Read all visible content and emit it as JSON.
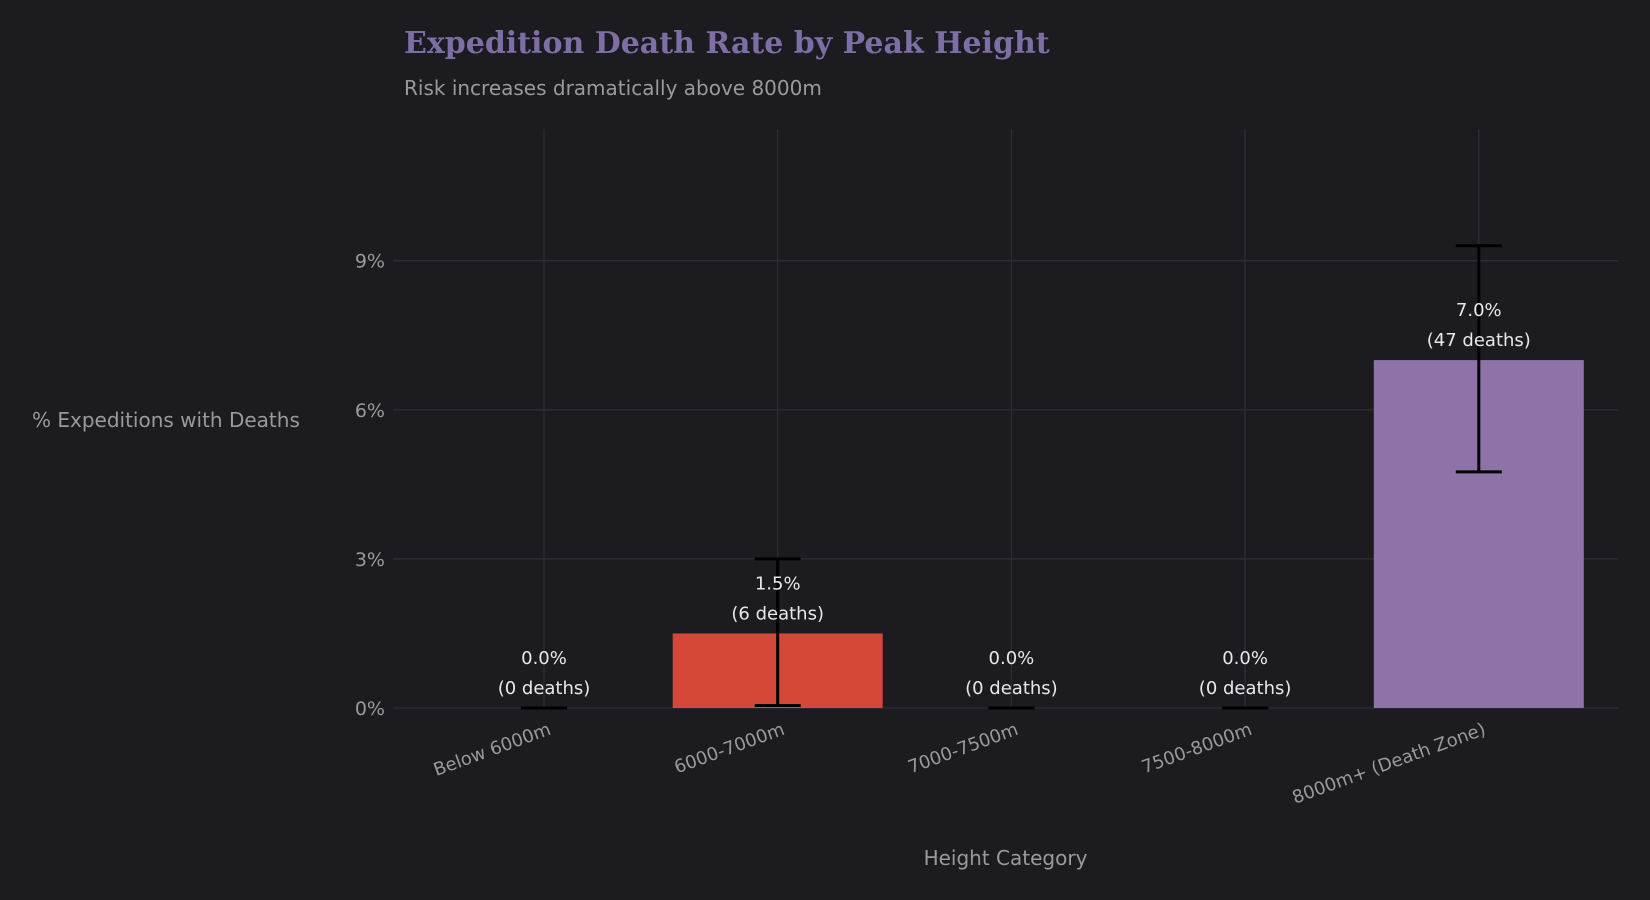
{
  "chart_data": {
    "type": "bar",
    "title": "Expedition Death Rate by Peak Height",
    "subtitle": "Risk increases dramatically above 8000m",
    "xlabel": "Height Category",
    "ylabel": "% Expeditions with Deaths",
    "categories": [
      "Below 6000m",
      "6000-7000m",
      "7000-7500m",
      "7500-8000m",
      "8000m+ (Death Zone)"
    ],
    "values": [
      0.0,
      1.5,
      0.0,
      0.0,
      7.0
    ],
    "deaths": [
      0,
      6,
      0,
      0,
      47
    ],
    "value_labels": [
      "0.0%",
      "1.5%",
      "0.0%",
      "0.0%",
      "7.0%"
    ],
    "death_labels": [
      "(0 deaths)",
      "(6 deaths)",
      "(0 deaths)",
      "(0 deaths)",
      "(47 deaths)"
    ],
    "error_low": [
      0.0,
      0.05,
      0.0,
      0.0,
      4.75
    ],
    "error_high": [
      0.0,
      3.0,
      0.0,
      0.0,
      9.3
    ],
    "bar_colors": [
      "#d4483a",
      "#d4483a",
      "#d4483a",
      "#d4483a",
      "#8e73a9"
    ],
    "yticks": [
      0,
      3,
      6,
      9
    ],
    "ytick_labels": [
      "0%",
      "3%",
      "6%",
      "9%"
    ],
    "ylim": [
      0,
      11.6
    ],
    "grid": true,
    "colors": {
      "background": "#1c1b20",
      "grid": "#2e2d33",
      "title": "#7d6ea6",
      "text": "#9a9a9a",
      "label": "#e8e8e8",
      "errorbar": "#000000"
    }
  }
}
